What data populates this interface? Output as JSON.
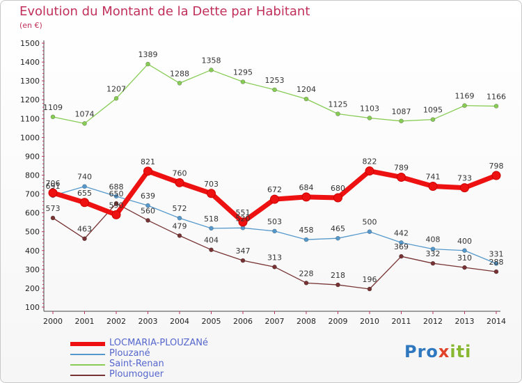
{
  "chart_data": {
    "type": "line",
    "title": "Evolution du Montant de la Dette par Habitant",
    "subtitle": "(en €)",
    "xlabel": "",
    "ylabel": "",
    "x": [
      "2000",
      "2001",
      "2002",
      "2003",
      "2004",
      "2005",
      "2006",
      "2007",
      "2008",
      "2009",
      "2010",
      "2011",
      "2012",
      "2013",
      "2014"
    ],
    "ylim": [
      100,
      1500
    ],
    "yticks": [
      "100",
      "200",
      "300",
      "400",
      "500",
      "600",
      "700",
      "800",
      "900",
      "1000",
      "1100",
      "1200",
      "1300",
      "1400",
      "1500"
    ],
    "grid": false,
    "legend_position": "bottom-left",
    "series": [
      {
        "name": "LOCMARIA-PLOUZANé",
        "color": "#ee1111",
        "values": [
          706,
          655,
          590,
          821,
          760,
          703,
          551,
          672,
          684,
          680,
          822,
          789,
          741,
          733,
          798
        ]
      },
      {
        "name": "Plouzané",
        "color": "#5599cc",
        "values": [
          691,
          740,
          688,
          639,
          572,
          518,
          520,
          503,
          458,
          465,
          500,
          442,
          408,
          400,
          331
        ]
      },
      {
        "name": "Saint-Renan",
        "color": "#88cc55",
        "values": [
          1109,
          1074,
          1207,
          1389,
          1288,
          1358,
          1295,
          1253,
          1204,
          1125,
          1103,
          1087,
          1095,
          1169,
          1166
        ]
      },
      {
        "name": "Ploumoguer",
        "color": "#773333",
        "values": [
          573,
          463,
          650,
          560,
          479,
          404,
          347,
          313,
          228,
          218,
          196,
          369,
          332,
          310,
          288
        ]
      }
    ]
  },
  "logo": {
    "p1": "Pro",
    "x": "x",
    "i": "iti"
  }
}
